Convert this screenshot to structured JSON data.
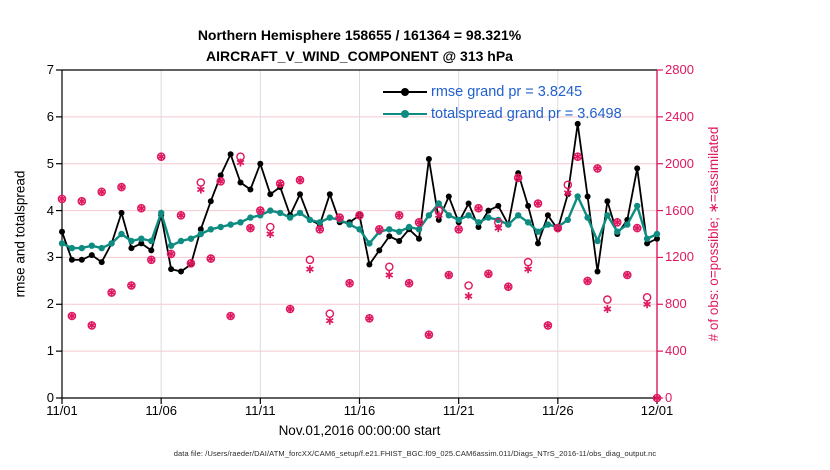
{
  "title": {
    "line1": "Northern Hemisphere 158655 / 161364 = 98.321%",
    "line2": "AIRCRAFT_V_WIND_COMPONENT @ 313 hPa"
  },
  "legend": {
    "items": [
      {
        "label": "rmse grand pr = 3.8245",
        "color": "#000000",
        "marker": "filled-dot"
      },
      {
        "label": "totalspread grand pr = 3.6498",
        "color": "#0e8c82",
        "marker": "filled-dot"
      }
    ],
    "text_color": "#2160cd"
  },
  "axes": {
    "left": {
      "label": "rmse and totalspread",
      "ticks": [
        "0",
        "1",
        "2",
        "3",
        "4",
        "5",
        "6",
        "7"
      ],
      "range": [
        0,
        7
      ],
      "color": "#000000"
    },
    "right": {
      "label": "# of obs: o=possible; ∗=assimilated",
      "ticks": [
        "0",
        "400",
        "800",
        "1200",
        "1600",
        "2000",
        "2400",
        "2800"
      ],
      "range": [
        0,
        2800
      ],
      "color": "#df1860"
    },
    "x": {
      "label": "Nov.01,2016 00:00:00 start",
      "ticks": [
        "11/01",
        "11/06",
        "11/11",
        "11/16",
        "11/21",
        "11/26",
        "12/01"
      ],
      "range_days": [
        0,
        30
      ]
    }
  },
  "footer": {
    "data_file": "data file: /Users/raeder/DAI/ATM_forcXX/CAM6_setup/f.e21.FHIST_BGC.f09_025.CAM6assim.011/Diags_NTrS_2016-11/obs_diag_output.nc"
  },
  "colors": {
    "rmse": "#000000",
    "totalspread": "#0e8c82",
    "obs": "#df1860",
    "grid_horizontal": "#f4c9cf",
    "grid_vertical": "#dcdcdc",
    "legend_text": "#2160cd"
  },
  "chart_data": {
    "type": "line",
    "title": "Northern Hemisphere 158655 / 161364 = 98.321%",
    "subtitle": "AIRCRAFT_V_WIND_COMPONENT @ 313 hPa",
    "xlabel": "Nov.01,2016 00:00:00 start",
    "ylabel_left": "rmse and totalspread",
    "ylabel_right": "# of obs: o=possible; ∗=assimilated",
    "x_start_day": 0,
    "x_step_days": 0.5,
    "x_days": 30,
    "ylim_left": [
      0,
      7
    ],
    "ylim_right": [
      0,
      2800
    ],
    "grid": true,
    "legend_position": "top-center-inside",
    "series": [
      {
        "name": "rmse",
        "axis": "left",
        "style": "line+dot",
        "color": "#000000",
        "values": [
          3.55,
          2.95,
          2.95,
          3.05,
          2.9,
          3.3,
          3.95,
          3.2,
          3.3,
          3.15,
          3.9,
          2.75,
          2.7,
          2.85,
          3.6,
          4.2,
          4.75,
          5.2,
          4.6,
          4.45,
          5.0,
          4.35,
          4.5,
          3.9,
          4.35,
          3.8,
          3.7,
          4.35,
          3.75,
          3.75,
          3.9,
          2.85,
          3.15,
          3.45,
          3.35,
          3.6,
          3.4,
          5.1,
          3.8,
          4.3,
          3.75,
          4.15,
          3.65,
          4.0,
          4.1,
          3.7,
          4.8,
          4.1,
          3.3,
          3.9,
          3.6,
          4.35,
          5.85,
          4.3,
          2.7,
          4.2,
          3.5,
          3.8,
          4.9,
          3.3,
          3.4
        ]
      },
      {
        "name": "totalspread",
        "axis": "left",
        "style": "line+dot",
        "color": "#0e8c82",
        "values": [
          3.3,
          3.2,
          3.2,
          3.25,
          3.2,
          3.3,
          3.5,
          3.35,
          3.4,
          3.35,
          3.95,
          3.25,
          3.35,
          3.4,
          3.5,
          3.6,
          3.65,
          3.7,
          3.75,
          3.85,
          3.9,
          4.0,
          3.95,
          3.85,
          3.95,
          3.8,
          3.75,
          3.85,
          3.8,
          3.7,
          3.6,
          3.3,
          3.55,
          3.6,
          3.55,
          3.65,
          3.6,
          3.9,
          4.15,
          3.9,
          3.8,
          3.9,
          3.75,
          3.85,
          3.8,
          3.7,
          3.9,
          3.75,
          3.55,
          3.7,
          3.65,
          3.8,
          4.3,
          3.85,
          3.35,
          3.9,
          3.55,
          3.7,
          4.1,
          3.4,
          3.5
        ]
      },
      {
        "name": "obs_possible",
        "axis": "right",
        "style": "circle-marker",
        "color": "#df1860",
        "values": [
          1700,
          700,
          1680,
          620,
          1760,
          900,
          1800,
          960,
          1620,
          1180,
          2060,
          1230,
          1560,
          1150,
          1840,
          1190,
          1850,
          700,
          2060,
          1450,
          1600,
          1460,
          1830,
          760,
          1860,
          1180,
          1440,
          720,
          1540,
          980,
          1560,
          680,
          1440,
          1120,
          1560,
          980,
          1500,
          540,
          1600,
          1050,
          1440,
          960,
          1620,
          1060,
          1500,
          950,
          1880,
          1160,
          1660,
          620,
          1450,
          1820,
          2060,
          1000,
          1960,
          840,
          1500,
          1050,
          1450,
          860,
          0
        ]
      },
      {
        "name": "obs_assimilated",
        "axis": "right",
        "style": "asterisk-marker",
        "color": "#df1860",
        "values": [
          1700,
          700,
          1680,
          620,
          1760,
          900,
          1800,
          960,
          1620,
          1180,
          2060,
          1230,
          1560,
          1150,
          1780,
          1190,
          1850,
          700,
          2010,
          1450,
          1600,
          1400,
          1830,
          760,
          1860,
          1100,
          1440,
          660,
          1540,
          980,
          1560,
          680,
          1440,
          1050,
          1560,
          980,
          1500,
          540,
          1560,
          1050,
          1440,
          870,
          1620,
          1060,
          1450,
          950,
          1880,
          1100,
          1660,
          620,
          1450,
          1750,
          2060,
          1000,
          1960,
          760,
          1500,
          1050,
          1450,
          800,
          0
        ]
      }
    ],
    "rmse_grand_pr": 3.8245,
    "totalspread_grand_pr": 3.6498
  }
}
